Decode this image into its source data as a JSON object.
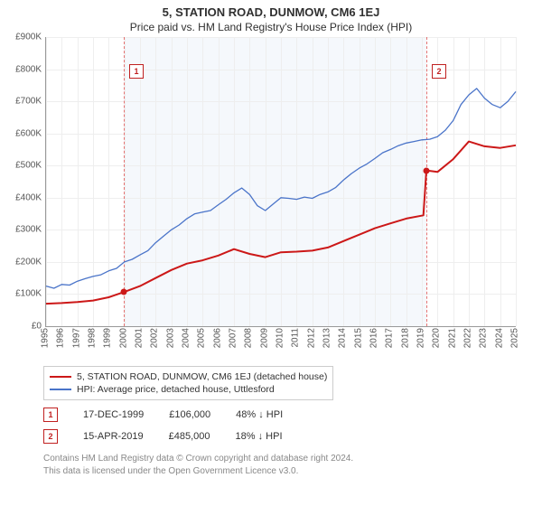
{
  "title": "5, STATION ROAD, DUNMOW, CM6 1EJ",
  "subtitle": "Price paid vs. HM Land Registry's House Price Index (HPI)",
  "chart": {
    "type": "line",
    "background_color": "#ffffff",
    "grid_color": "#eeeeee",
    "axis_color": "#999999",
    "shade_color": "#f5f8fc",
    "shade_x": [
      1999.96,
      2019.29
    ],
    "vline_color": "#e57373",
    "xlim": [
      1995,
      2025
    ],
    "ylim": [
      0,
      900
    ],
    "y_unit_prefix": "£",
    "y_unit_suffix": "K",
    "ytick_step": 100,
    "xticks": [
      1995,
      1996,
      1997,
      1998,
      1999,
      2000,
      2001,
      2002,
      2003,
      2004,
      2005,
      2006,
      2007,
      2008,
      2009,
      2010,
      2011,
      2012,
      2013,
      2014,
      2015,
      2016,
      2017,
      2018,
      2019,
      2020,
      2021,
      2022,
      2023,
      2024,
      2025
    ],
    "title_fontsize": 13,
    "label_fontsize": 10,
    "line_width_series1": 2,
    "line_width_series2": 1.3,
    "series": [
      {
        "name": "5, STATION ROAD, DUNMOW, CM6 1EJ (detached house)",
        "color": "#cc1818",
        "points": [
          [
            1995,
            70
          ],
          [
            1996,
            72
          ],
          [
            1997,
            75
          ],
          [
            1998,
            80
          ],
          [
            1999,
            90
          ],
          [
            1999.96,
            106
          ],
          [
            2001,
            125
          ],
          [
            2002,
            150
          ],
          [
            2003,
            175
          ],
          [
            2004,
            195
          ],
          [
            2005,
            205
          ],
          [
            2006,
            220
          ],
          [
            2007,
            240
          ],
          [
            2008,
            225
          ],
          [
            2009,
            215
          ],
          [
            2010,
            230
          ],
          [
            2011,
            232
          ],
          [
            2012,
            235
          ],
          [
            2013,
            245
          ],
          [
            2014,
            265
          ],
          [
            2015,
            285
          ],
          [
            2016,
            305
          ],
          [
            2017,
            320
          ],
          [
            2018,
            335
          ],
          [
            2019.1,
            345
          ],
          [
            2019.29,
            485
          ],
          [
            2020,
            480
          ],
          [
            2021,
            520
          ],
          [
            2022,
            575
          ],
          [
            2023,
            560
          ],
          [
            2024,
            555
          ],
          [
            2025,
            563
          ]
        ]
      },
      {
        "name": "HPI: Average price, detached house, Uttlesford",
        "color": "#4a74c9",
        "points": [
          [
            1995,
            125
          ],
          [
            1995.5,
            118
          ],
          [
            1996,
            130
          ],
          [
            1996.5,
            128
          ],
          [
            1997,
            140
          ],
          [
            1997.5,
            148
          ],
          [
            1998,
            155
          ],
          [
            1998.5,
            160
          ],
          [
            1999,
            172
          ],
          [
            1999.5,
            180
          ],
          [
            2000,
            200
          ],
          [
            2000.5,
            208
          ],
          [
            2001,
            222
          ],
          [
            2001.5,
            235
          ],
          [
            2002,
            260
          ],
          [
            2002.5,
            280
          ],
          [
            2003,
            300
          ],
          [
            2003.5,
            315
          ],
          [
            2004,
            335
          ],
          [
            2004.5,
            350
          ],
          [
            2005,
            355
          ],
          [
            2005.5,
            360
          ],
          [
            2006,
            378
          ],
          [
            2006.5,
            395
          ],
          [
            2007,
            415
          ],
          [
            2007.5,
            430
          ],
          [
            2008,
            410
          ],
          [
            2008.5,
            375
          ],
          [
            2009,
            360
          ],
          [
            2009.5,
            380
          ],
          [
            2010,
            400
          ],
          [
            2010.5,
            398
          ],
          [
            2011,
            395
          ],
          [
            2011.5,
            402
          ],
          [
            2012,
            398
          ],
          [
            2012.5,
            410
          ],
          [
            2013,
            418
          ],
          [
            2013.5,
            432
          ],
          [
            2014,
            455
          ],
          [
            2014.5,
            475
          ],
          [
            2015,
            492
          ],
          [
            2015.5,
            505
          ],
          [
            2016,
            522
          ],
          [
            2016.5,
            540
          ],
          [
            2017,
            550
          ],
          [
            2017.5,
            562
          ],
          [
            2018,
            570
          ],
          [
            2018.5,
            575
          ],
          [
            2019,
            580
          ],
          [
            2019.5,
            582
          ],
          [
            2020,
            590
          ],
          [
            2020.5,
            610
          ],
          [
            2021,
            640
          ],
          [
            2021.5,
            690
          ],
          [
            2022,
            720
          ],
          [
            2022.5,
            740
          ],
          [
            2023,
            710
          ],
          [
            2023.5,
            690
          ],
          [
            2024,
            680
          ],
          [
            2024.5,
            700
          ],
          [
            2025,
            730
          ]
        ]
      }
    ],
    "markers": [
      {
        "id": "1",
        "x": 1999.96,
        "y": 106,
        "box_y_chart": 815,
        "color": "#cc1818"
      },
      {
        "id": "2",
        "x": 2019.29,
        "y": 485,
        "box_y_chart": 815,
        "color": "#cc1818"
      }
    ]
  },
  "legend": {
    "items": [
      {
        "color": "#cc1818",
        "label": "5, STATION ROAD, DUNMOW, CM6 1EJ (detached house)"
      },
      {
        "color": "#4a74c9",
        "label": "HPI: Average price, detached house, Uttlesford"
      }
    ]
  },
  "annotations": [
    {
      "id": "1",
      "date": "17-DEC-1999",
      "price": "£106,000",
      "diff": "48% ↓ HPI"
    },
    {
      "id": "2",
      "date": "15-APR-2019",
      "price": "£485,000",
      "diff": "18% ↓ HPI"
    }
  ],
  "footer": {
    "line1": "Contains HM Land Registry data © Crown copyright and database right 2024.",
    "line2": "This data is licensed under the Open Government Licence v3.0."
  }
}
